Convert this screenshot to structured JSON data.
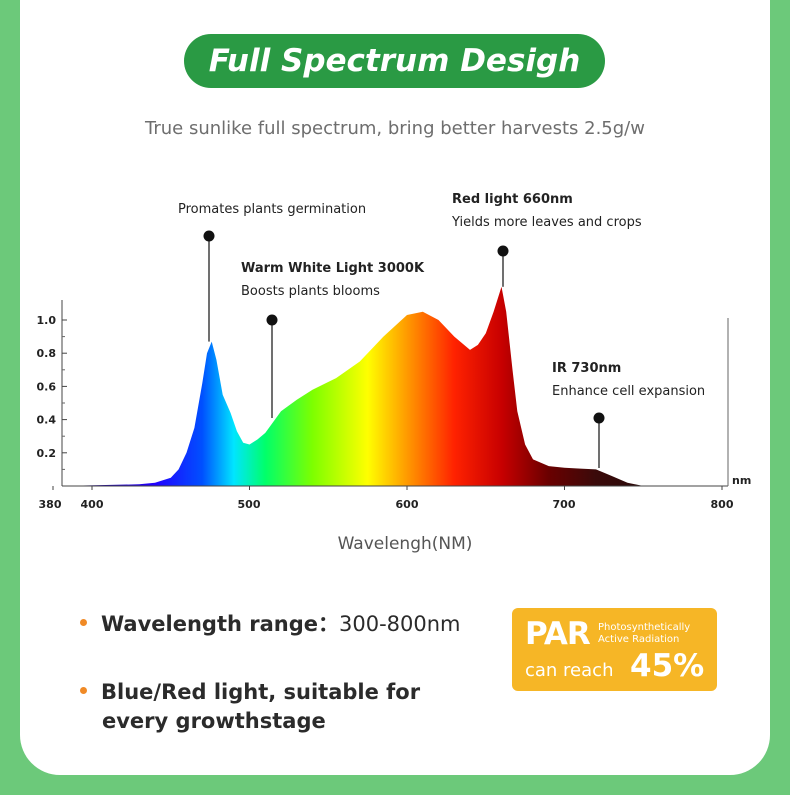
{
  "header": {
    "title": "Full Spectrum Desigh",
    "subtitle": "True sunlike full spectrum, bring better harvests 2.5g/w"
  },
  "chart_data": {
    "type": "area",
    "title": "",
    "xlabel": "Wavelengh(NM)",
    "x_unit": "nm",
    "ylabel": "",
    "xlim": [
      380,
      800
    ],
    "ylim": [
      0,
      1.1
    ],
    "x_ticks": [
      380,
      400,
      500,
      600,
      700,
      800
    ],
    "y_ticks": [
      0.2,
      0.4,
      0.6,
      0.8,
      1.0
    ],
    "y_tick_labels": [
      "0.2",
      "0.4",
      "0.6",
      "0.8",
      "1.0"
    ],
    "grid": false,
    "series": [
      {
        "x": [
          380,
          430,
          440,
          450,
          455,
          460,
          465,
          470,
          473,
          476,
          479,
          483,
          488,
          492,
          496,
          500,
          505,
          510,
          520,
          530,
          540,
          555,
          570,
          585,
          600,
          610,
          620,
          630,
          640,
          645,
          650,
          655,
          660,
          663,
          667,
          670,
          675,
          680,
          690,
          700,
          710,
          720,
          730,
          740,
          750
        ],
        "values": [
          0.0,
          0.01,
          0.02,
          0.05,
          0.1,
          0.2,
          0.35,
          0.62,
          0.8,
          0.87,
          0.76,
          0.55,
          0.44,
          0.33,
          0.26,
          0.25,
          0.28,
          0.32,
          0.45,
          0.52,
          0.58,
          0.65,
          0.75,
          0.9,
          1.03,
          1.05,
          1.0,
          0.9,
          0.82,
          0.85,
          0.92,
          1.05,
          1.2,
          1.05,
          0.7,
          0.45,
          0.25,
          0.16,
          0.12,
          0.11,
          0.105,
          0.1,
          0.06,
          0.02,
          0.0
        ]
      }
    ],
    "annotations": [
      {
        "x": 475,
        "y": 0.87,
        "title": "",
        "text": "Promates plants germination"
      },
      {
        "x": 515,
        "y": 0.4,
        "title": "Warm White Light 3000K",
        "text": "Boosts plants blooms"
      },
      {
        "x": 660,
        "y": 1.2,
        "title": "Red light 660nm",
        "text": "Yields more leaves and crops"
      },
      {
        "x": 722,
        "y": 0.12,
        "title": "IR 730nm",
        "text": "Enhance cell expansion"
      }
    ]
  },
  "features": [
    {
      "label": "Wavelength range：",
      "value": "300-800nm"
    },
    {
      "line1": "Blue/Red light, suitable for",
      "line2": "every growthstage"
    }
  ],
  "par": {
    "name": "PAR",
    "desc1": "Photosynthetically",
    "desc2": "Active Radiation",
    "reach": "can reach",
    "percent": "45%"
  },
  "colors": {
    "background": "#6cc97a",
    "title_pill": "#2a9a44",
    "bullet": "#f08a26",
    "par_badge": "#f6b626"
  }
}
